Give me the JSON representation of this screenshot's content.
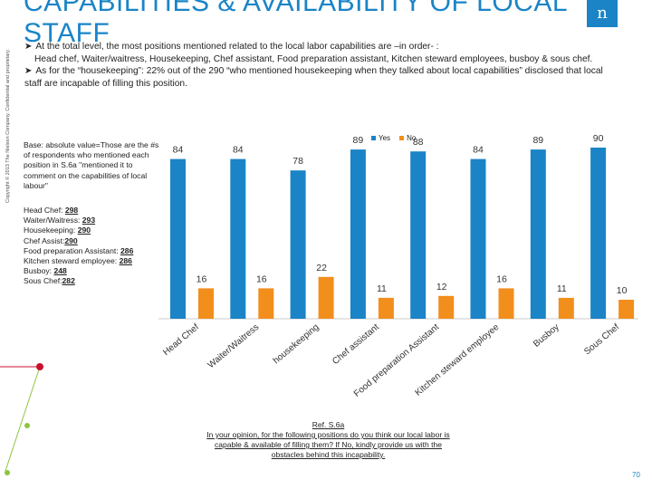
{
  "page": {
    "title_line1": "CAPABILITIES & AVAILABILITY OF LOCAL",
    "title_line2": "STAFF",
    "logo_text": "n",
    "copyright": "Copyright © 2013 The Nielsen Company. Confidential and proprietary.",
    "page_number": "70"
  },
  "bullets": [
    {
      "lead": "At the total level, the most positions mentioned related to the local labor capabilities are –in order- :",
      "body": "Head chef, Waiter/waitress, Housekeeping, Chef assistant, Food preparation assistant, Kitchen steward employees, busboy & sous chef."
    },
    {
      "lead": "As for the “housekeeping”: 22% out of the 290 “who mentioned housekeeping when they talked about local capabilities” disclosed that local staff are incapable of filling this position.",
      "body": ""
    }
  ],
  "base_note": "Base: absolute value=Those are the #s of respondents who mentioned each position in S.6a \"mentioned it to comment on the capabilities of local labour\"",
  "counts": [
    {
      "label": "Head Chef:",
      "value": "298"
    },
    {
      "label": "Waiter/Waitress:",
      "value": "293"
    },
    {
      "label": "Housekeeping:",
      "value": "290"
    },
    {
      "label": "Chef Assist:",
      "value": "290"
    },
    {
      "label": "Food preparation Assistant:",
      "value": "286"
    },
    {
      "label": "Kitchen steward employee:",
      "value": "286"
    },
    {
      "label": "Busboy:",
      "value": "248"
    },
    {
      "label": "Sous Chef:",
      "value": "282"
    }
  ],
  "reference": {
    "ref": "Ref. S.6a",
    "question": "In your opinion, for the following positions do you think our local labor is capable & available of filling them? If No, kindly provide us with the obstacles behind this incapability."
  },
  "colors": {
    "yes": "#1a84c7",
    "no": "#f28e1c",
    "title": "#1a84c7"
  },
  "chart_data": {
    "type": "bar",
    "title": "",
    "xlabel": "",
    "ylabel": "",
    "ylim": [
      0,
      100
    ],
    "categories": [
      "Head Chef",
      "Waiter/Waitress",
      "housekeeping",
      "Chef assistant",
      "Food preparation Assistant",
      "Kitchen steward employee",
      "Busboy",
      "Sous Chef"
    ],
    "series": [
      {
        "name": "Yes",
        "values": [
          84,
          84,
          78,
          89,
          88,
          84,
          89,
          90
        ]
      },
      {
        "name": "No",
        "values": [
          16,
          16,
          22,
          11,
          12,
          16,
          11,
          10
        ]
      }
    ],
    "legend": "top-center"
  }
}
